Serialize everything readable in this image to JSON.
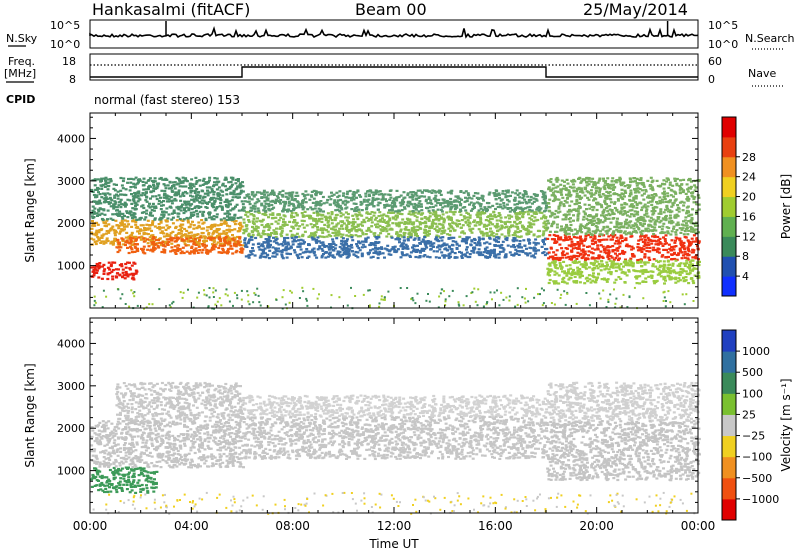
{
  "header": {
    "station": "Hankasalmi (fitACF)",
    "beam": "Beam 00",
    "date": "25/May/2014"
  },
  "strip": {
    "nsky_label": "N.Sky",
    "nsky_ticks": [
      "10^5",
      "10^0"
    ],
    "nsearch_label": "N.Search",
    "nsearch_ticks": [
      "10^5",
      "10^0"
    ],
    "freq_label": "Freq.",
    "freq_unit": "[MHz]",
    "freq_ticks": [
      "18",
      "8"
    ],
    "nave_label": "Nave",
    "nave_ticks": [
      "60",
      "0"
    ],
    "cpid_label": "CPID",
    "cpid_value": "normal (fast stereo) 153"
  },
  "chart_data": [
    {
      "type": "heatmap",
      "panel": "power",
      "ylabel": "Slant Range [km]",
      "xlabel": "",
      "yticks": [
        1000,
        2000,
        3000,
        4000
      ],
      "ylim": [
        0,
        4600
      ],
      "xlim_hours": [
        0,
        24
      ],
      "colorbar_label": "Power [dB]",
      "colorbar_ticks": [
        "4",
        "8",
        "12",
        "16",
        "20",
        "24",
        "28"
      ],
      "colorbar_colors": [
        "#1030ff",
        "#2050b0",
        "#3a8a5a",
        "#60b050",
        "#a0cc30",
        "#f0d020",
        "#f09020",
        "#e84010",
        "#e00000"
      ],
      "bands": [
        {
          "t0": 0.0,
          "t1": 1.8,
          "r0": 700,
          "r1": 1100,
          "color": "#e82010"
        },
        {
          "t0": 0.0,
          "t1": 6.0,
          "r0": 1500,
          "r1": 2100,
          "color": "#e0a020"
        },
        {
          "t0": 1.0,
          "t1": 6.0,
          "r0": 1300,
          "r1": 1700,
          "color": "#f06010"
        },
        {
          "t0": 0.0,
          "t1": 6.0,
          "r0": 2100,
          "r1": 3100,
          "color": "#4a8f6a"
        },
        {
          "t0": 6.0,
          "t1": 18.0,
          "r0": 1700,
          "r1": 2300,
          "color": "#8bbf50"
        },
        {
          "t0": 6.0,
          "t1": 18.0,
          "r0": 1200,
          "r1": 1700,
          "color": "#3a6fa8"
        },
        {
          "t0": 6.0,
          "t1": 18.0,
          "r0": 2300,
          "r1": 2800,
          "color": "#5a9a70"
        },
        {
          "t0": 18.0,
          "t1": 24.0,
          "r0": 1150,
          "r1": 1750,
          "color": "#f03010"
        },
        {
          "t0": 18.0,
          "t1": 24.0,
          "r0": 1750,
          "r1": 3100,
          "color": "#7ab060"
        },
        {
          "t0": 18.0,
          "t1": 24.0,
          "r0": 600,
          "r1": 1150,
          "color": "#9acc40"
        }
      ]
    },
    {
      "type": "heatmap",
      "panel": "velocity",
      "ylabel": "Slant Range [km]",
      "xlabel": "Time UT",
      "yticks": [
        1000,
        2000,
        3000,
        4000
      ],
      "ylim": [
        0,
        4600
      ],
      "xlim_hours": [
        0,
        24
      ],
      "xticks": [
        "00:00",
        "04:00",
        "08:00",
        "12:00",
        "16:00",
        "20:00",
        "00:00"
      ],
      "colorbar_label": "Velocity [m s⁻¹]",
      "colorbar_ticks": [
        "1000",
        "500",
        "100",
        "25",
        "−25",
        "−100",
        "−500",
        "−1000"
      ],
      "colorbar_colors": [
        "#2040c0",
        "#3070a0",
        "#3a8a5a",
        "#7ac030",
        "#c8c8c8",
        "#f0d020",
        "#f09020",
        "#f05010",
        "#e00000"
      ],
      "bands": [
        {
          "t0": 0.0,
          "t1": 2.6,
          "r0": 500,
          "r1": 1100,
          "color": "#3c9a58"
        },
        {
          "t0": 0.0,
          "t1": 6.0,
          "r0": 1100,
          "r1": 2200,
          "color": "#c4c4c4"
        },
        {
          "t0": 1.0,
          "t1": 6.0,
          "r0": 2200,
          "r1": 3100,
          "color": "#c8c8c8"
        },
        {
          "t0": 6.0,
          "t1": 18.0,
          "r0": 1300,
          "r1": 2300,
          "color": "#c6c6c6"
        },
        {
          "t0": 6.0,
          "t1": 18.0,
          "r0": 2300,
          "r1": 2800,
          "color": "#d2d2d2"
        },
        {
          "t0": 18.0,
          "t1": 24.0,
          "r0": 800,
          "r1": 2200,
          "color": "#c4c4c4"
        },
        {
          "t0": 18.0,
          "t1": 24.0,
          "r0": 2200,
          "r1": 3100,
          "color": "#d0d0d0"
        }
      ]
    }
  ]
}
